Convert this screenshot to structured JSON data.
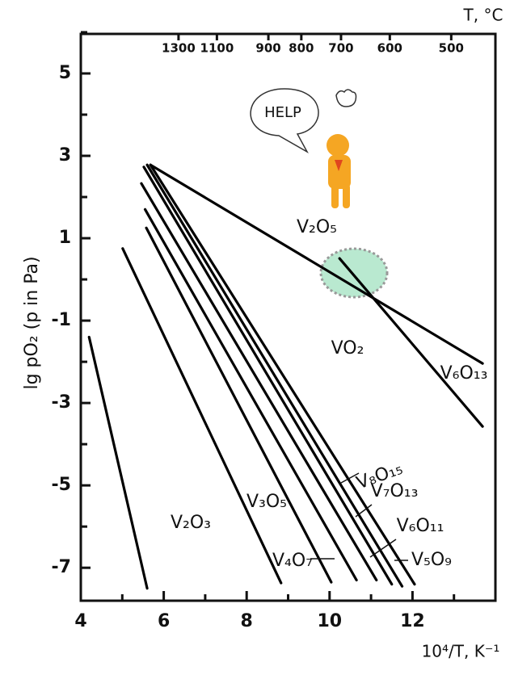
{
  "chart_data": {
    "type": "line",
    "top_xlabel": "T, °C",
    "xlabel": "10⁴/T, K⁻¹",
    "ylabel": "lg pO₂ (p in Pa)",
    "help_bubble": "HELP",
    "color": "#000000",
    "xlim": [
      4,
      14
    ],
    "xticks": [
      4,
      6,
      8,
      10,
      12
    ],
    "xticks_minor": [
      5,
      7,
      9,
      11,
      13
    ],
    "ylim": [
      -7.8,
      5.96
    ],
    "yticks": [
      5,
      3,
      1,
      -1,
      -3,
      -5,
      -7
    ],
    "yticks_minor": [
      6,
      4,
      2,
      0,
      -2,
      -4,
      -6
    ],
    "top_xticks": [
      1300,
      1100,
      900,
      800,
      700,
      600,
      500
    ],
    "series": [
      {
        "x": [
          4.2,
          5.6
        ],
        "values": [
          -1.4,
          -7.5
        ]
      },
      {
        "x": [
          5.01,
          8.83
        ],
        "values": [
          0.75,
          -7.37
        ]
      },
      {
        "x": [
          5.58,
          10.04
        ],
        "values": [
          1.25,
          -7.35
        ]
      },
      {
        "x": [
          5.55,
          10.65
        ],
        "values": [
          1.7,
          -7.3
        ]
      },
      {
        "x": [
          5.46,
          11.13
        ],
        "values": [
          2.33,
          -7.3
        ]
      },
      {
        "x": [
          5.52,
          11.5
        ],
        "values": [
          2.73,
          -7.4
        ]
      },
      {
        "x": [
          5.6,
          11.75
        ],
        "values": [
          2.78,
          -7.45
        ]
      },
      {
        "x": [
          5.68,
          12.05
        ],
        "values": [
          2.78,
          -7.4
        ]
      },
      {
        "x": [
          5.68,
          13.69
        ],
        "values": [
          2.78,
          -2.04
        ]
      },
      {
        "x": [
          10.24,
          13.69
        ],
        "values": [
          0.51,
          -3.57
        ]
      }
    ],
    "annotations": [
      {
        "text": "V₂O₅"
      },
      {
        "text": "VO₂"
      },
      {
        "text": "V₆O₁₃"
      },
      {
        "text": "V₂O₃"
      },
      {
        "text": "V₃O₅"
      },
      {
        "text": "V₄O₇"
      },
      {
        "text": "V₈O₁₅"
      },
      {
        "text": "V₇O₁₃"
      },
      {
        "text": "V₆O₁₁"
      },
      {
        "text": "V₅O₉"
      }
    ]
  }
}
